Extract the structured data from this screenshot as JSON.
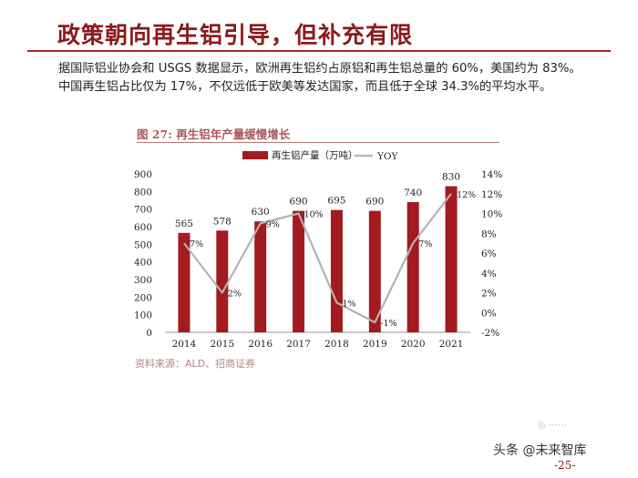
{
  "title": "政策朝向再生铝引导，但补充有限",
  "intro": "据国际铝业协会和 USGS 数据显示，欧洲再生铝约占原铝和再生铝总量的 60%，美国约为 83%。中国再生铝占比仅为 17%，不仅远低于欧美等发达国家，而且低于全球 34.3%的平均水平。",
  "figure_caption": "图 27: 再生铝年产量缓慢增长",
  "source": "资料来源：ALD、招商证券",
  "watermark": "头条 @未来智库",
  "page_number": "-25-",
  "colors": {
    "bar": "#a31a1f",
    "line": "#b3b3b3",
    "title": "#8b1a1a"
  },
  "chart_data": {
    "type": "bar",
    "categories": [
      "2014",
      "2015",
      "2016",
      "2017",
      "2018",
      "2019",
      "2020",
      "2021"
    ],
    "series": [
      {
        "name": "再生铝产量（万吨）",
        "type": "bar",
        "axis": "left",
        "values": [
          565,
          578,
          630,
          690,
          695,
          690,
          740,
          830
        ]
      },
      {
        "name": "YOY",
        "type": "line",
        "axis": "right",
        "values": [
          7,
          2,
          9,
          10,
          1,
          -1,
          7,
          12
        ]
      }
    ],
    "bar_labels": [
      "565",
      "578",
      "630",
      "690",
      "695",
      "690",
      "740",
      "830"
    ],
    "line_labels": [
      "7%",
      "2%",
      "9%",
      "10%",
      "1%",
      "-1%",
      "7%",
      "12%"
    ],
    "yleft": {
      "min": 0,
      "max": 900,
      "step": 100,
      "ticks": [
        "0",
        "100",
        "200",
        "300",
        "400",
        "500",
        "600",
        "700",
        "800",
        "900"
      ]
    },
    "yright": {
      "min": -2,
      "max": 14,
      "step": 2,
      "ticks": [
        "-2%",
        "0%",
        "2%",
        "4%",
        "6%",
        "8%",
        "10%",
        "12%",
        "14%"
      ]
    },
    "legend_position": "top",
    "grid": false
  }
}
